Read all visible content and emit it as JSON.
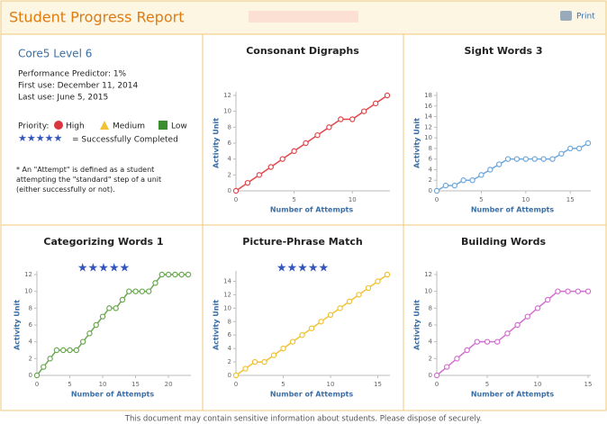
{
  "header": {
    "title": "Student Progress Report",
    "print": "Print"
  },
  "info": {
    "level": "Core5 Level 6",
    "predictor": "Performance Predictor:  1%",
    "first_use": "First use: December 11, 2014",
    "last_use": "Last use: June 5, 2015",
    "priority": "Priority:",
    "high": "High",
    "medium": "Medium",
    "low": "Low",
    "stars": "★★★★★",
    "completed": "= Successfully Completed",
    "note": "* An \"Attempt\" is defined as a student attempting the \"standard\" step of a unit (either successfully or not)."
  },
  "footer": "This document may contain sensitive information about students. Please dispose of securely.",
  "chart_data": [
    {
      "type": "line",
      "title": "Consonant Digraphs",
      "x_label": "Number of Attempts",
      "y_label": "Activity Unit",
      "color": "#e0474c",
      "x": [
        0,
        1,
        2,
        3,
        4,
        5,
        6,
        7,
        8,
        9,
        10,
        11,
        12,
        13
      ],
      "values": [
        0,
        1,
        2,
        3,
        4,
        5,
        6,
        7,
        8,
        9,
        9,
        10,
        11,
        12
      ],
      "xlim": [
        0,
        13
      ],
      "xticks": [
        0,
        5,
        10
      ],
      "ylim": [
        0,
        12
      ],
      "yticks": [
        0,
        2,
        4,
        6,
        8,
        10,
        12
      ]
    },
    {
      "type": "line",
      "title": "Sight Words 3",
      "x_label": "Number of Attempts",
      "y_label": "Activity Unit",
      "color": "#6fa8dc",
      "x": [
        0,
        1,
        2,
        3,
        4,
        5,
        6,
        7,
        8,
        9,
        10,
        11,
        12,
        13,
        14,
        15,
        16,
        17
      ],
      "values": [
        0,
        1,
        1,
        2,
        2,
        3,
        4,
        5,
        6,
        6,
        6,
        6,
        6,
        6,
        7,
        8,
        8,
        9
      ],
      "xlim": [
        0,
        17
      ],
      "xticks": [
        0,
        5,
        10,
        15
      ],
      "ylim": [
        0,
        18
      ],
      "yticks": [
        0,
        2,
        4,
        6,
        8,
        10,
        12,
        14,
        16,
        18
      ]
    },
    {
      "type": "line",
      "title": "Categorizing Words 1",
      "stars": "★★★★★",
      "x_label": "Number of Attempts",
      "y_label": "Activity Unit",
      "color": "#6aa84f",
      "x": [
        0,
        1,
        2,
        3,
        4,
        5,
        6,
        7,
        8,
        9,
        10,
        11,
        12,
        13,
        14,
        15,
        16,
        17,
        18,
        19,
        20,
        21,
        22,
        23
      ],
      "values": [
        0,
        1,
        2,
        3,
        3,
        3,
        3,
        4,
        5,
        6,
        7,
        8,
        8,
        9,
        10,
        10,
        10,
        10,
        11,
        12,
        12,
        12,
        12,
        12
      ],
      "xlim": [
        0,
        23
      ],
      "xticks": [
        0,
        5,
        10,
        15,
        20
      ],
      "ylim": [
        0,
        12
      ],
      "yticks": [
        0,
        2,
        4,
        6,
        8,
        10,
        12
      ]
    },
    {
      "type": "line",
      "title": "Picture-Phrase Match",
      "stars": "★★★★★",
      "x_label": "Number of Attempts",
      "y_label": "Activity Unit",
      "color": "#f1c232",
      "x": [
        0,
        1,
        2,
        3,
        4,
        5,
        6,
        7,
        8,
        9,
        10,
        11,
        12,
        13,
        14,
        15,
        16
      ],
      "values": [
        0,
        1,
        2,
        2,
        3,
        4,
        5,
        6,
        7,
        8,
        9,
        10,
        11,
        12,
        13,
        14,
        15
      ],
      "xlim": [
        0,
        16
      ],
      "xticks": [
        0,
        5,
        10,
        15
      ],
      "ylim": [
        0,
        15
      ],
      "yticks": [
        0,
        2,
        4,
        6,
        8,
        10,
        12,
        14
      ]
    },
    {
      "type": "line",
      "title": "Building Words",
      "x_label": "Number of Attempts",
      "y_label": "Activity Unit",
      "color": "#d36fd0",
      "x": [
        0,
        1,
        2,
        3,
        4,
        5,
        6,
        7,
        8,
        9,
        10,
        11,
        12,
        13,
        14,
        15
      ],
      "values": [
        0,
        1,
        2,
        3,
        4,
        4,
        4,
        5,
        6,
        7,
        8,
        9,
        10,
        10,
        10,
        10
      ],
      "xlim": [
        0,
        15
      ],
      "xticks": [
        0,
        5,
        10,
        15
      ],
      "ylim": [
        0,
        12
      ],
      "yticks": [
        0,
        2,
        4,
        6,
        8,
        10,
        12
      ]
    }
  ]
}
